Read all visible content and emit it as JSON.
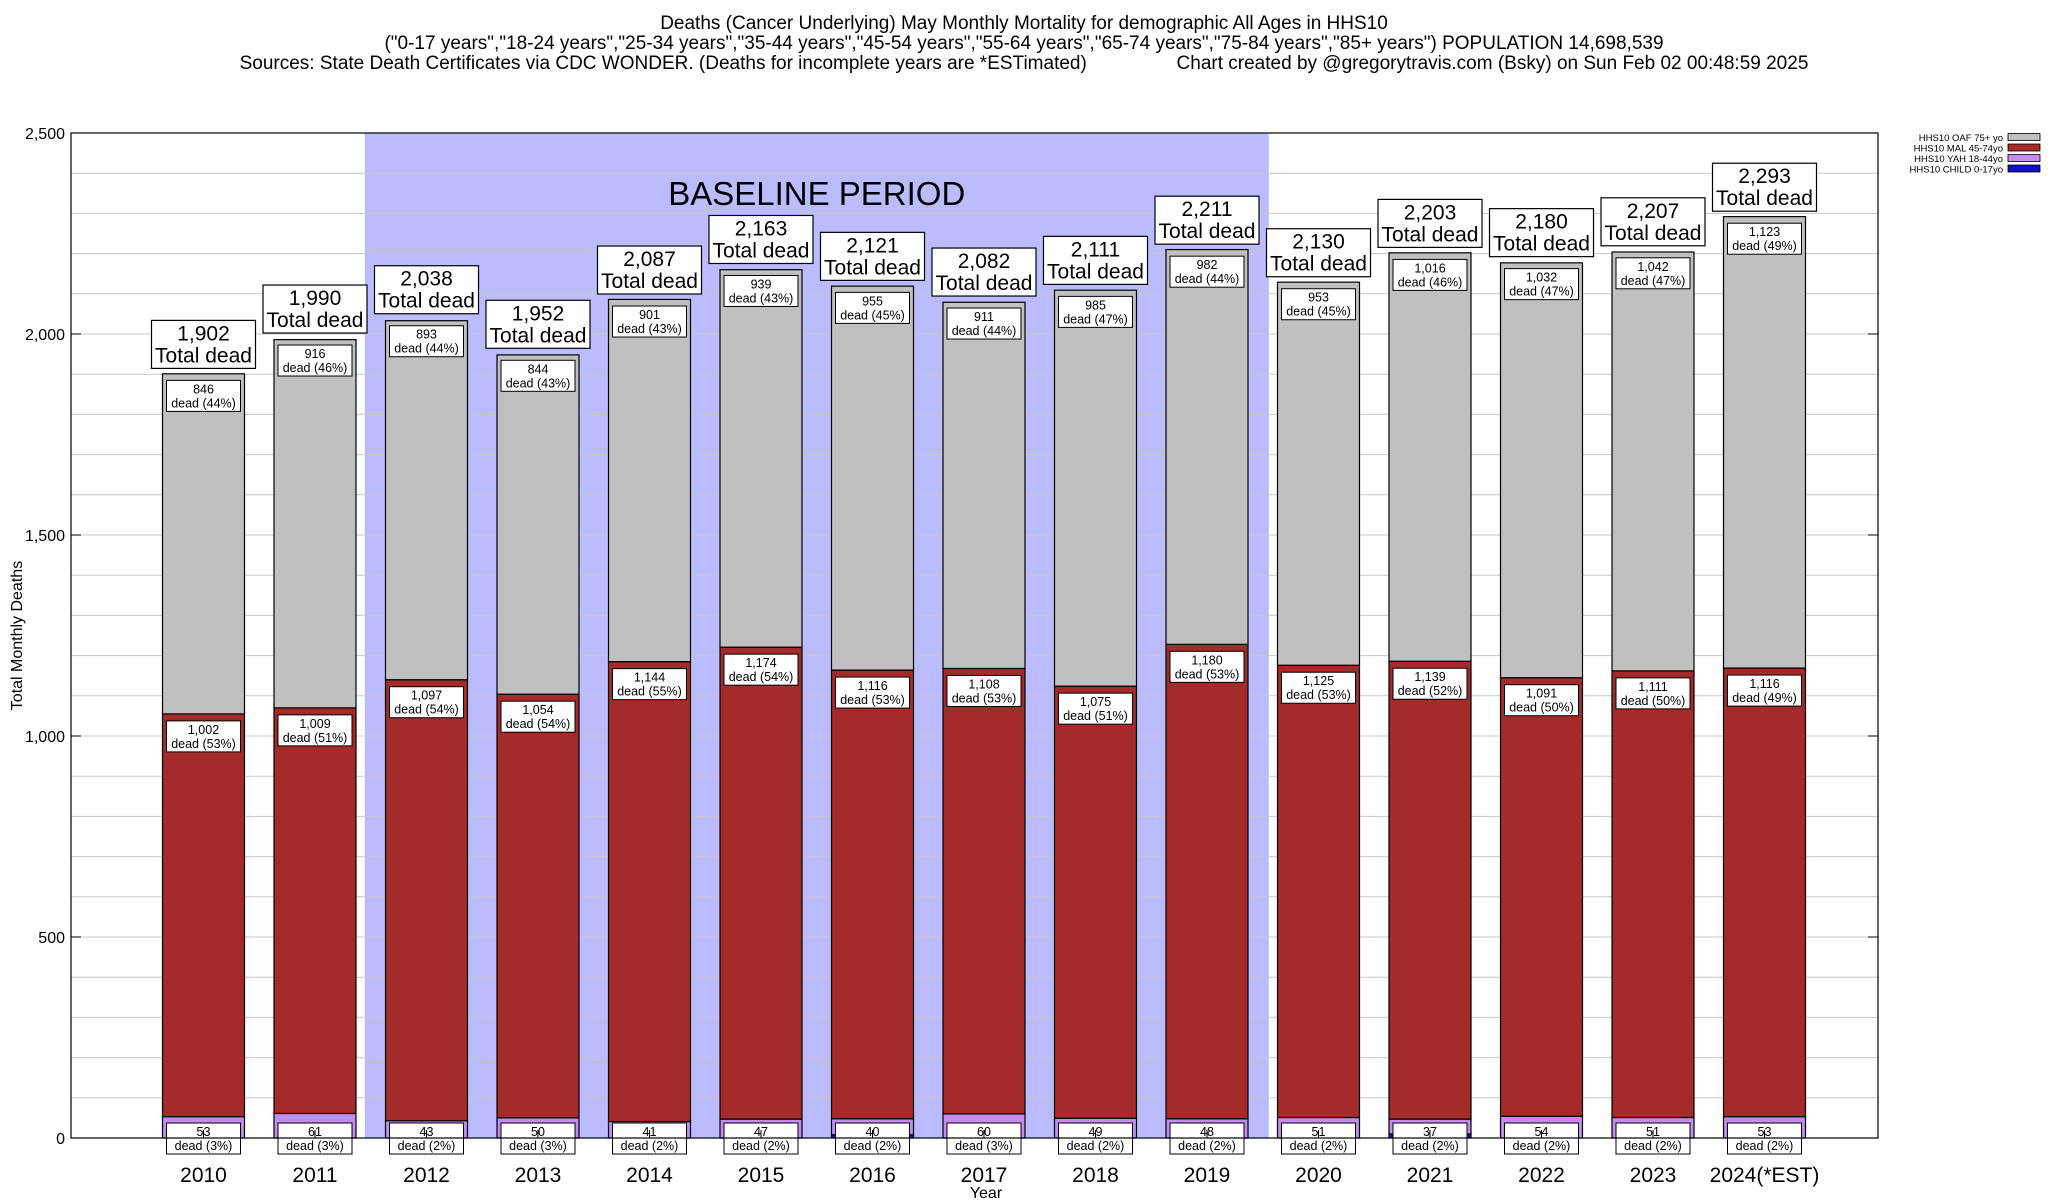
{
  "header": {
    "title_line1": "Deaths (Cancer Underlying) May Monthly Mortality for demographic All Ages in HHS10",
    "title_line2": "(\"0-17 years\",\"18-24 years\",\"25-34 years\",\"35-44 years\",\"45-54 years\",\"55-64 years\",\"65-74 years\",\"75-84 years\",\"85+ years\") POPULATION 14,698,539",
    "title_line3": "Sources: State Death Certificates via CDC WONDER. (Deaths for incomplete years are *ESTimated)                 Chart created by @gregorytravis.com (Bsky) on Sun Feb 02 00:48:59 2025"
  },
  "chart_data": {
    "type": "bar",
    "stacked": true,
    "xlabel": "Year",
    "ylabel": "Total Monthly Deaths",
    "ylim": [
      0,
      2500
    ],
    "yticks": [
      0,
      500,
      1000,
      1500,
      2000,
      2500
    ],
    "ytick_labels": [
      "0",
      "500",
      "1,000",
      "1,500",
      "2,000",
      "2,500"
    ],
    "grid": true,
    "legend_position": "top-right",
    "categories": [
      "2010",
      "2011",
      "2012",
      "2013",
      "2014",
      "2015",
      "2016",
      "2017",
      "2018",
      "2019",
      "2020",
      "2021",
      "2022",
      "2023",
      "2024(*EST)"
    ],
    "baseline_region": {
      "label": "BASELINE PERIOD",
      "from": "2012",
      "to": "2019",
      "color": "#bbbbff"
    },
    "series": [
      {
        "name": "HHS10 CHILD 0-17yo",
        "color": "#1010c8",
        "values": [
          0,
          0,
          0,
          0,
          0,
          0,
          8,
          0,
          0,
          0,
          0,
          10,
          0,
          0,
          0
        ]
      },
      {
        "name": "HHS10 YAH 18-44yo",
        "color": "#c38cf0",
        "values": [
          53,
          61,
          43,
          50,
          41,
          47,
          40,
          60,
          49,
          48,
          51,
          37,
          54,
          51,
          53
        ],
        "value_labels": [
          "53",
          "61",
          "43",
          "50",
          "41",
          "47",
          "40",
          "60",
          "49",
          "48",
          "51",
          "37",
          "54",
          "51",
          "53"
        ],
        "pct_labels": [
          "dead (3%)",
          "dead (3%)",
          "dead (2%)",
          "dead (3%)",
          "dead (2%)",
          "dead (2%)",
          "dead (2%)",
          "dead (3%)",
          "dead (2%)",
          "dead (2%)",
          "dead (2%)",
          "dead (2%)",
          "dead (2%)",
          "dead (2%)",
          "dead (2%)"
        ]
      },
      {
        "name": "HHS10 MAL 45-74yo",
        "color": "#a52a2a",
        "values": [
          1002,
          1009,
          1097,
          1054,
          1144,
          1174,
          1116,
          1108,
          1075,
          1180,
          1125,
          1139,
          1091,
          1111,
          1116
        ],
        "value_labels": [
          "1,002",
          "1,009",
          "1,097",
          "1,054",
          "1,144",
          "1,174",
          "1,116",
          "1,108",
          "1,075",
          "1,180",
          "1,125",
          "1,139",
          "1,091",
          "1,111",
          "1,116"
        ],
        "pct_labels": [
          "dead (53%)",
          "dead (51%)",
          "dead (54%)",
          "dead (54%)",
          "dead (55%)",
          "dead (54%)",
          "dead (53%)",
          "dead (53%)",
          "dead (51%)",
          "dead (53%)",
          "dead (53%)",
          "dead (52%)",
          "dead (50%)",
          "dead (50%)",
          "dead (49%)"
        ]
      },
      {
        "name": "HHS10 OAF 75+ yo",
        "color": "#c0c0c0",
        "values": [
          846,
          916,
          893,
          844,
          901,
          939,
          955,
          911,
          985,
          982,
          953,
          1016,
          1032,
          1042,
          1123
        ],
        "value_labels": [
          "846",
          "916",
          "893",
          "844",
          "901",
          "939",
          "955",
          "911",
          "985",
          "982",
          "953",
          "1,016",
          "1,032",
          "1,042",
          "1,123"
        ],
        "pct_labels": [
          "dead (44%)",
          "dead (46%)",
          "dead (44%)",
          "dead (43%)",
          "dead (43%)",
          "dead (43%)",
          "dead (45%)",
          "dead (44%)",
          "dead (47%)",
          "dead (44%)",
          "dead (45%)",
          "dead (46%)",
          "dead (47%)",
          "dead (47%)",
          "dead (49%)"
        ]
      }
    ],
    "totals": [
      1902,
      1990,
      2038,
      1952,
      2087,
      2163,
      2121,
      2082,
      2111,
      2211,
      2130,
      2203,
      2180,
      2207,
      2293
    ],
    "total_labels": [
      "1,902",
      "1,990",
      "2,038",
      "1,952",
      "2,087",
      "2,163",
      "2,121",
      "2,082",
      "2,111",
      "2,211",
      "2,130",
      "2,203",
      "2,180",
      "2,207",
      "2,293"
    ],
    "total_suffix": "Total dead"
  }
}
